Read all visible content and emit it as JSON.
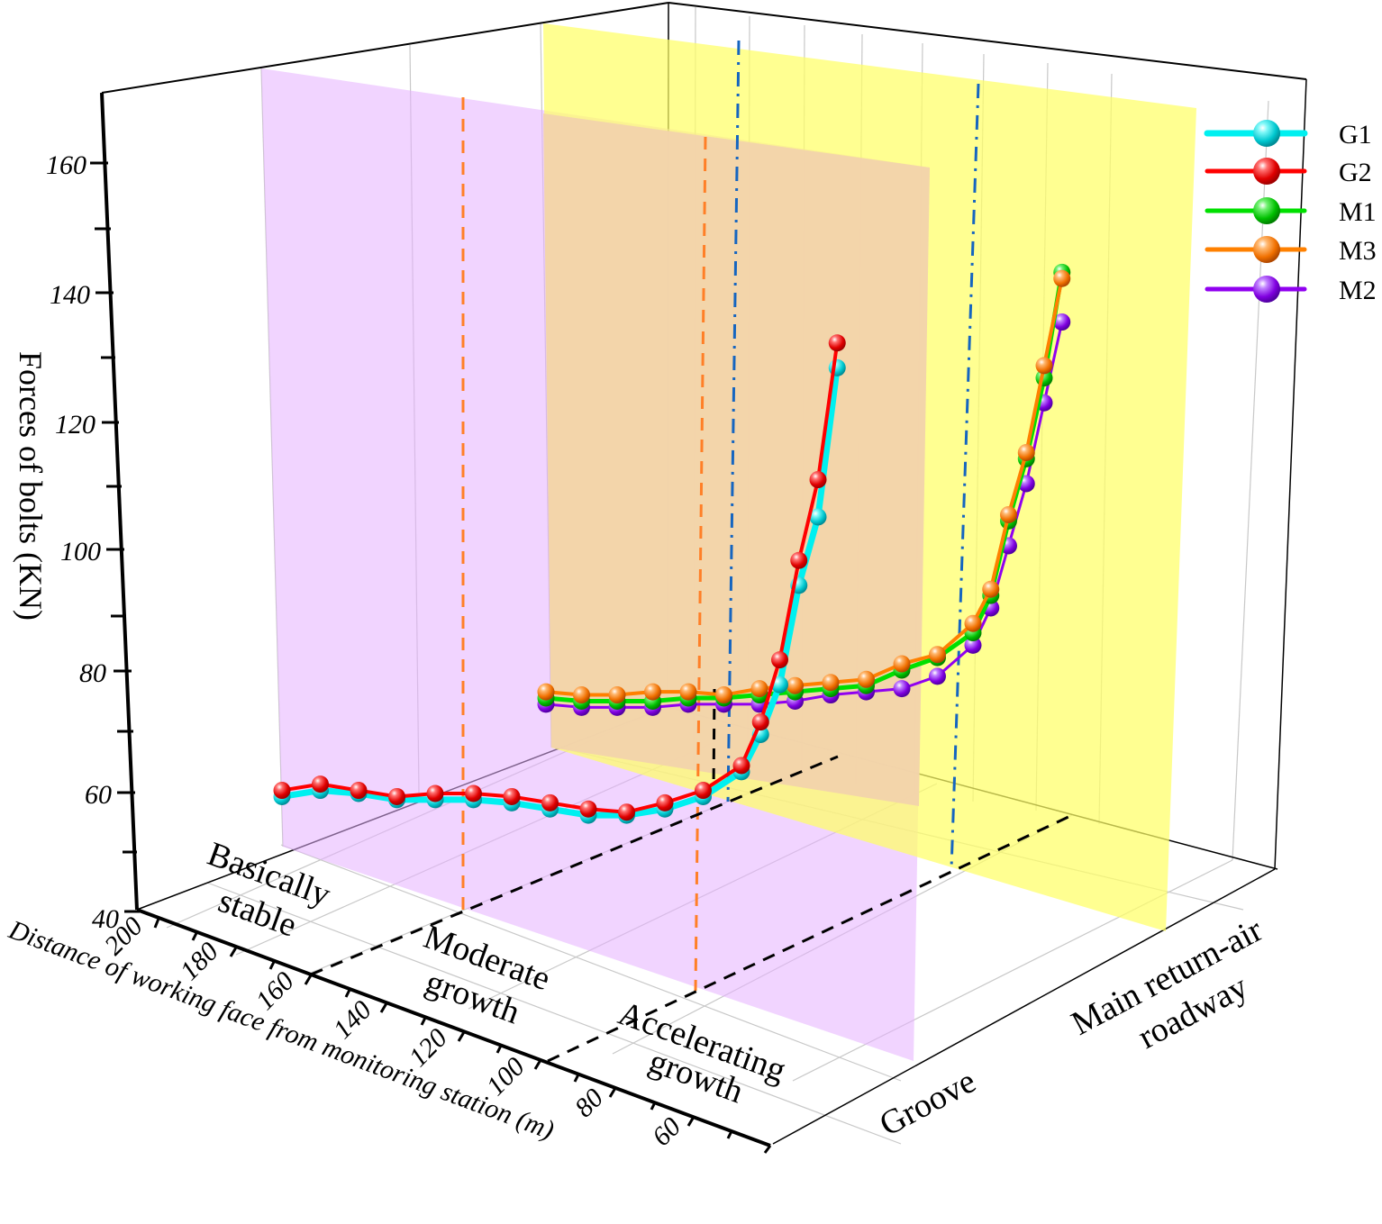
{
  "chart_data": {
    "type": "line",
    "subtype": "3d-line-waterfall",
    "title": "",
    "xlabel": "Distance of working face from monitoring station (m)",
    "ylabel": "Forces of bolts (KN)",
    "zlabel": "",
    "x_ticks": [
      "200",
      "180",
      "160",
      "140",
      "120",
      "100",
      "80",
      "60"
    ],
    "y_ticks": [
      "40",
      "60",
      "80",
      "100",
      "120",
      "140",
      "160"
    ],
    "z_categories": [
      "Groove",
      "Main return-air roadway"
    ],
    "xlim": [
      200,
      50
    ],
    "ylim": [
      40,
      170
    ],
    "grid": true,
    "legend_position": "upper right",
    "stage_labels": [
      "Basically stable",
      "Moderate growth",
      "Accelerating growth"
    ],
    "stage_boundaries_m": [
      160,
      100
    ],
    "x": [
      200,
      190,
      180,
      170,
      160,
      150,
      140,
      130,
      120,
      110,
      100,
      90,
      80,
      75,
      70,
      65,
      60,
      55
    ],
    "series": [
      {
        "name": "G1",
        "color": "#00f0f0",
        "location": "Groove",
        "values": [
          59,
          60,
          59.5,
          58.5,
          58.5,
          58.5,
          58,
          57,
          56,
          56,
          57,
          59,
          63,
          69,
          77,
          93,
          104,
          128
        ]
      },
      {
        "name": "G2",
        "color": "#ff0000",
        "location": "Groove",
        "values": [
          60,
          61,
          60,
          59,
          59.5,
          59.5,
          59,
          58,
          57,
          56.5,
          58,
          60,
          64,
          71,
          81,
          97,
          110,
          132
        ]
      },
      {
        "name": "M1",
        "color": "#00e000",
        "location": "Main return-air roadway",
        "values": [
          75.5,
          75,
          75,
          75,
          75.5,
          75.5,
          76,
          76.5,
          77,
          77.5,
          80,
          82,
          86,
          92,
          104,
          114,
          127,
          144
        ]
      },
      {
        "name": "M3",
        "color": "#ff8000",
        "location": "Main return-air roadway",
        "values": [
          76.5,
          76,
          76,
          76.5,
          76.5,
          76,
          77,
          77.5,
          78,
          78.5,
          81,
          82.5,
          87.5,
          93,
          105,
          115,
          129,
          143
        ]
      },
      {
        "name": "M2",
        "color": "#9000f0",
        "location": "Main return-air roadway",
        "values": [
          74.5,
          74,
          74,
          74,
          74.5,
          74.5,
          74.5,
          75,
          76,
          76.5,
          77,
          79,
          84,
          90,
          100,
          110,
          123,
          136
        ]
      }
    ],
    "planes": [
      {
        "name": "moderate-growth-plane",
        "color": "#e6b0ff",
        "opacity": 0.55
      },
      {
        "name": "accelerating-growth-plane",
        "color": "#ffff66",
        "opacity": 0.75
      }
    ]
  },
  "legend": {
    "items": [
      {
        "label": "G1",
        "color": "#00f0f0"
      },
      {
        "label": "G2",
        "color": "#ff0000"
      },
      {
        "label": "M1",
        "color": "#00e000"
      },
      {
        "label": "M3",
        "color": "#ff8000"
      },
      {
        "label": "M2",
        "color": "#9000f0"
      }
    ]
  },
  "axes": {
    "y_title": "Forces of bolts (KN)",
    "x_title": "Distance of working face from monitoring station (m)",
    "z_cat_1": "Groove",
    "z_cat_2_line1": "Main return-air",
    "z_cat_2_line2": "roadway"
  },
  "regions": {
    "stable_line1": "Basically",
    "stable_line2": "stable",
    "moderate_line1": "Moderate",
    "moderate_line2": "growth",
    "accel_line1": "Accelerating",
    "accel_line2": "growth"
  }
}
